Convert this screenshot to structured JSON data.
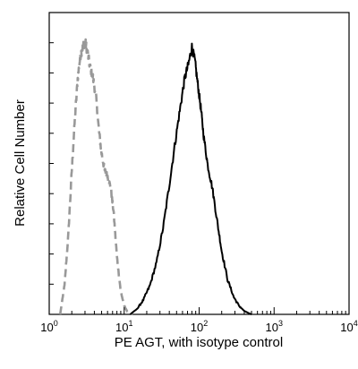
{
  "chart_data": {
    "type": "area",
    "title": "",
    "xlabel": "PE  AGT,  with isotype control",
    "ylabel": "Relative Cell Number",
    "x_scale": "log",
    "xlim": [
      1,
      10000
    ],
    "ylim": [
      0,
      1
    ],
    "grid": false,
    "legend": "none",
    "x_ticks": [
      {
        "base": "10",
        "exp": "0",
        "value": 1
      },
      {
        "base": "10",
        "exp": "1",
        "value": 10
      },
      {
        "base": "10",
        "exp": "2",
        "value": 100
      },
      {
        "base": "10",
        "exp": "3",
        "value": 1000
      },
      {
        "base": "10",
        "exp": "4",
        "value": 10000
      }
    ],
    "series": [
      {
        "style": "dashed",
        "color": "#999999",
        "x": [
          1.4,
          1.6,
          1.8,
          2.0,
          2.2,
          2.4,
          2.6,
          2.8,
          3.0,
          3.2,
          3.5,
          3.8,
          4.2,
          4.6,
          5.0,
          5.5,
          6.0,
          6.6,
          7.2,
          8.0,
          9.0,
          10.0,
          11.0,
          12.0,
          13.0
        ],
        "y": [
          0.0,
          0.1,
          0.28,
          0.5,
          0.68,
          0.82,
          0.9,
          0.93,
          0.95,
          0.92,
          0.86,
          0.83,
          0.76,
          0.64,
          0.56,
          0.5,
          0.48,
          0.44,
          0.36,
          0.2,
          0.08,
          0.03,
          0.01,
          0.005,
          0.0
        ]
      },
      {
        "style": "solid",
        "color": "#000000",
        "x": [
          12,
          15,
          18,
          22,
          27,
          33,
          40,
          48,
          56,
          64,
          72,
          80,
          88,
          96,
          105,
          115,
          130,
          150,
          175,
          200,
          240,
          290,
          340,
          400,
          460,
          500
        ],
        "y": [
          0.0,
          0.02,
          0.05,
          0.1,
          0.18,
          0.3,
          0.45,
          0.6,
          0.72,
          0.82,
          0.87,
          0.93,
          0.88,
          0.8,
          0.72,
          0.62,
          0.52,
          0.44,
          0.32,
          0.22,
          0.12,
          0.06,
          0.03,
          0.012,
          0.004,
          0.0
        ]
      }
    ]
  }
}
